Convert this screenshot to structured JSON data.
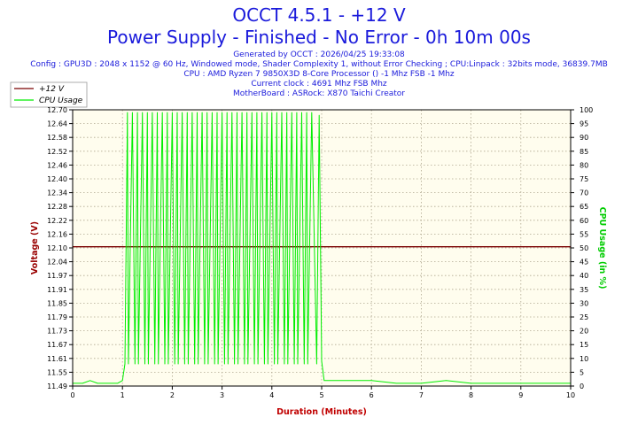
{
  "header": {
    "title": "OCCT 4.5.1 - +12 V",
    "subtitle": "Power Supply - Finished - No Error - 0h 10m 00s",
    "info_lines": [
      "Generated by OCCT : 2026/04/25 19:33:08",
      "Config : GPU3D : 2048 x 1152 @ 60 Hz, Windowed mode, Shader Complexity 1, without Error Checking ; CPU:Linpack : 32bits mode, 36839.7MB",
      "CPU : AMD Ryzen 7 9850X3D 8-Core Processor () -1 Mhz FSB -1 Mhz",
      "Current clock : 4691 Mhz FSB  Mhz",
      "MotherBoard : ASRock: X870 Taichi Creator"
    ]
  },
  "colors": {
    "voltage": "#7a0000",
    "cpu": "#00ee00",
    "plot_bg": "#fffdee",
    "grid": "#b0a890",
    "text_blue": "#1a1adb",
    "axis_x_label": "#c00000",
    "axis_left_label": "#990000",
    "axis_right_label": "#00cc00"
  },
  "chart_data": {
    "type": "line",
    "title": "OCCT 4.5.1 - +12 V",
    "subtitle": "Power Supply - Finished - No Error - 0h 10m 00s",
    "xlabel": "Duration (Minutes)",
    "ylabel_left": "Voltage (V)",
    "ylabel_right": "CPU Usage (in %)",
    "xlim": [
      0,
      10
    ],
    "ylim_left": [
      11.49,
      12.7
    ],
    "ylim_right": [
      0,
      100
    ],
    "x_ticks": [
      "0",
      "1",
      "2",
      "3",
      "4",
      "5",
      "6",
      "7",
      "8",
      "9",
      "10"
    ],
    "y_left_ticks": [
      "11.49",
      "11.55",
      "11.61",
      "11.67",
      "11.73",
      "11.79",
      "11.85",
      "11.91",
      "11.97",
      "12.04",
      "12.10",
      "12.16",
      "12.22",
      "12.28",
      "12.34",
      "12.40",
      "12.46",
      "12.52",
      "12.58",
      "12.64",
      "12.70"
    ],
    "y_right_ticks": [
      "0",
      "5",
      "10",
      "15",
      "20",
      "25",
      "30",
      "35",
      "40",
      "45",
      "50",
      "55",
      "60",
      "65",
      "70",
      "75",
      "80",
      "85",
      "90",
      "95",
      "100"
    ],
    "grid": true,
    "legend_position": "top-left",
    "series": [
      {
        "name": "+12 V",
        "axis": "left",
        "x": [
          0,
          10
        ],
        "values": [
          12.1,
          12.1
        ]
      },
      {
        "name": "CPU Usage",
        "axis": "right",
        "x": [
          0,
          0.2,
          0.35,
          0.5,
          0.7,
          0.9,
          1.0,
          1.05,
          1.1,
          1.12,
          1.2,
          1.25,
          1.3,
          1.32,
          1.4,
          1.45,
          1.5,
          1.52,
          1.6,
          1.65,
          1.7,
          1.72,
          1.8,
          1.85,
          1.9,
          1.92,
          2.0,
          2.05,
          2.1,
          2.12,
          2.2,
          2.25,
          2.3,
          2.32,
          2.4,
          2.45,
          2.5,
          2.52,
          2.6,
          2.65,
          2.7,
          2.72,
          2.8,
          2.85,
          2.9,
          2.92,
          3.0,
          3.05,
          3.1,
          3.12,
          3.2,
          3.25,
          3.3,
          3.32,
          3.4,
          3.45,
          3.5,
          3.52,
          3.6,
          3.65,
          3.7,
          3.72,
          3.8,
          3.85,
          3.9,
          3.92,
          4.0,
          4.05,
          4.1,
          4.12,
          4.2,
          4.25,
          4.3,
          4.32,
          4.4,
          4.45,
          4.5,
          4.52,
          4.6,
          4.65,
          4.7,
          4.72,
          4.8,
          4.9,
          4.95,
          5.0,
          5.05,
          5.5,
          6.0,
          6.5,
          7.0,
          7.5,
          8.0,
          8.5,
          9.0,
          9.5,
          10.0
        ],
        "values": [
          1,
          1,
          2,
          1,
          1,
          1,
          2,
          8,
          99,
          8,
          99,
          8,
          99,
          8,
          99,
          8,
          99,
          8,
          99,
          8,
          99,
          8,
          99,
          8,
          99,
          8,
          99,
          8,
          99,
          8,
          99,
          8,
          99,
          8,
          99,
          8,
          99,
          8,
          99,
          8,
          99,
          8,
          99,
          8,
          99,
          8,
          99,
          8,
          99,
          8,
          99,
          8,
          99,
          8,
          99,
          8,
          99,
          8,
          99,
          8,
          99,
          8,
          99,
          8,
          99,
          8,
          99,
          8,
          99,
          8,
          99,
          8,
          99,
          8,
          99,
          8,
          99,
          8,
          99,
          8,
          99,
          8,
          99,
          8,
          98,
          9,
          2,
          2,
          2,
          1,
          1,
          2,
          1,
          1,
          1,
          1,
          1
        ]
      }
    ]
  }
}
